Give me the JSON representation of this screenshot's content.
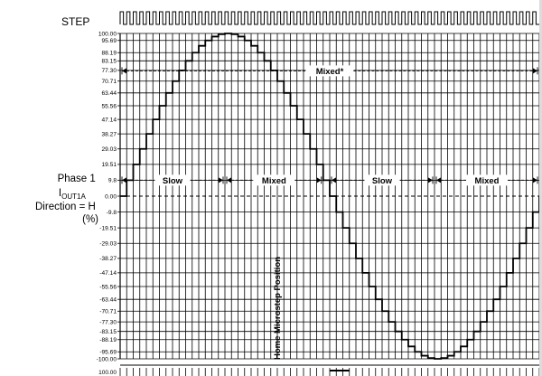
{
  "labels": {
    "step": "STEP",
    "phase_line1": "Phase 1",
    "phase_i": "I",
    "phase_sub": "OUT1A",
    "phase_line3": "Direction = H",
    "phase_line4": "(%)",
    "home": "Home Microstep Position",
    "bottom_tick": "100.00"
  },
  "chart_data": {
    "type": "line",
    "title": "",
    "xlabel": "",
    "ylabel": "Phase 1 IOUT1A Direction = H (%)",
    "y_ticks": [
      "100.00",
      "95.69",
      "88.19",
      "83.15",
      "77.30",
      "70.71",
      "63.44",
      "55.56",
      "47.14",
      "38.27",
      "29.03",
      "19.51",
      "9.8",
      "0.00",
      "-9.8",
      "-19.51",
      "-29.03",
      "-38.27",
      "-47.14",
      "-55.56",
      "-63.44",
      "-70.71",
      "-77.30",
      "-83.15",
      "-88.19",
      "-95.69",
      "-100.00"
    ],
    "ylim": [
      -100,
      100
    ],
    "microsteps_per_period": 64,
    "series": [
      {
        "values": [
          0,
          9.8,
          19.51,
          29.03,
          38.27,
          47.14,
          55.56,
          63.44,
          70.71,
          77.3,
          83.15,
          88.19,
          92.39,
          95.69,
          98.08,
          99.52,
          100.0,
          99.52,
          98.08,
          95.69,
          92.39,
          88.19,
          83.15,
          77.3,
          70.71,
          63.44,
          55.56,
          47.14,
          38.27,
          29.03,
          19.51,
          9.8,
          0,
          -9.8,
          -19.51,
          -29.03,
          -38.27,
          -47.14,
          -55.56,
          -63.44,
          -70.71,
          -77.3,
          -83.15,
          -88.19,
          -92.39,
          -95.69,
          -98.08,
          -99.52,
          -100.0,
          -99.52,
          -98.08,
          -95.69,
          -92.39,
          -88.19,
          -83.15,
          -77.3,
          -70.71,
          -63.44,
          -55.56,
          -47.14,
          -38.27,
          -29.03,
          -19.51,
          -9.8,
          0
        ]
      }
    ],
    "annotations": [
      {
        "text": "Mixed*",
        "kind": "span",
        "from": 0,
        "to": 64,
        "y": 77
      },
      {
        "text": "Slow",
        "kind": "span",
        "from": 0,
        "to": 16,
        "y": 9.8
      },
      {
        "text": "Mixed",
        "kind": "span",
        "from": 16,
        "to": 31,
        "y": 9.8
      },
      {
        "text": "Slow",
        "kind": "span",
        "from": 32,
        "to": 48,
        "y": 9.8
      },
      {
        "text": "Mixed",
        "kind": "span",
        "from": 48,
        "to": 64,
        "y": 9.8
      }
    ],
    "grid": true
  },
  "colors": {
    "ink": "#000000",
    "background": "#ffffff"
  }
}
